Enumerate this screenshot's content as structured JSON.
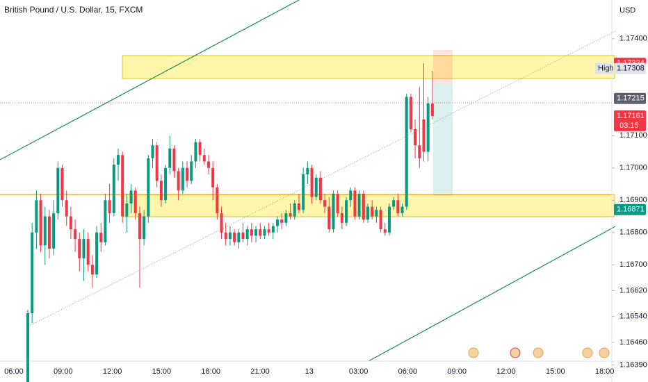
{
  "chart_data": {
    "type": "candlestick",
    "title": "British Pound / U.S. Dollar, 15, FXCM",
    "currency": "USD",
    "up_color": "#089981",
    "down_color": "#f23645",
    "ylim": [
      1.1635,
      1.1752
    ],
    "yticks": [
      {
        "value": 1.174,
        "label": "1.17400"
      },
      {
        "value": 1.171,
        "label": "1.17100"
      },
      {
        "value": 1.17,
        "label": "1.17000"
      },
      {
        "value": 1.169,
        "label": "1.16900"
      },
      {
        "value": 1.168,
        "label": "1.16800"
      },
      {
        "value": 1.167,
        "label": "1.16700"
      },
      {
        "value": 1.1662,
        "label": "1.16620"
      },
      {
        "value": 1.1654,
        "label": "1.16540"
      },
      {
        "value": 1.1646,
        "label": "1.16460"
      },
      {
        "value": 1.1639,
        "label": "1.16390"
      }
    ],
    "xticks": [
      "06:00",
      "09:00",
      "12:00",
      "15:00",
      "18:00",
      "21:00",
      "13",
      "03:00",
      "06:00",
      "09:00",
      "12:00",
      "15:00",
      "18:00"
    ],
    "price_tags": [
      {
        "value": 1.17324,
        "label": "1.17324",
        "color": "#f23645"
      },
      {
        "value": 1.17308,
        "label": "1.17308",
        "color": "#e0e3eb",
        "marker": "High"
      },
      {
        "value": 1.17215,
        "label": "1.17215",
        "color": "#5d606b"
      },
      {
        "value": 1.17161,
        "label": "1.17161",
        "color": "#f23645",
        "countdown": "03:15"
      },
      {
        "value": 1.16871,
        "label": "1.16871",
        "color": "#089981"
      }
    ],
    "candles": [
      [
        1.1633,
        1.1656,
        1.163,
        1.1655
      ],
      [
        1.1655,
        1.1683,
        1.1652,
        1.168
      ],
      [
        1.168,
        1.1693,
        1.1675,
        1.169
      ],
      [
        1.169,
        1.1692,
        1.1674,
        1.1676
      ],
      [
        1.1676,
        1.1688,
        1.167,
        1.1685
      ],
      [
        1.1685,
        1.1687,
        1.1672,
        1.1675
      ],
      [
        1.1675,
        1.169,
        1.1673,
        1.1686
      ],
      [
        1.1686,
        1.1702,
        1.1684,
        1.17
      ],
      [
        1.17,
        1.1701,
        1.1688,
        1.169
      ],
      [
        1.169,
        1.1693,
        1.1682,
        1.1685
      ],
      [
        1.1685,
        1.1688,
        1.1678,
        1.1681
      ],
      [
        1.1681,
        1.1684,
        1.1674,
        1.1678
      ],
      [
        1.1678,
        1.168,
        1.1668,
        1.1672
      ],
      [
        1.1672,
        1.1681,
        1.1665,
        1.1678
      ],
      [
        1.1678,
        1.168,
        1.1668,
        1.167
      ],
      [
        1.167,
        1.1673,
        1.1663,
        1.1667
      ],
      [
        1.1667,
        1.1682,
        1.1666,
        1.168
      ],
      [
        1.168,
        1.1683,
        1.1674,
        1.1677
      ],
      [
        1.1677,
        1.1692,
        1.1676,
        1.169
      ],
      [
        1.169,
        1.1695,
        1.1683,
        1.1686
      ],
      [
        1.1686,
        1.1703,
        1.1685,
        1.1701
      ],
      [
        1.1701,
        1.1706,
        1.1696,
        1.1704
      ],
      [
        1.1704,
        1.1705,
        1.1683,
        1.1685
      ],
      [
        1.1685,
        1.1692,
        1.168,
        1.1689
      ],
      [
        1.1689,
        1.1695,
        1.1686,
        1.1693
      ],
      [
        1.1693,
        1.1694,
        1.1684,
        1.1686
      ],
      [
        1.1686,
        1.1688,
        1.1663,
        1.1678
      ],
      [
        1.1678,
        1.1687,
        1.1676,
        1.1685
      ],
      [
        1.1685,
        1.1704,
        1.1683,
        1.1703
      ],
      [
        1.1703,
        1.1709,
        1.17,
        1.1707
      ],
      [
        1.1707,
        1.1708,
        1.1694,
        1.1696
      ],
      [
        1.1696,
        1.1698,
        1.1688,
        1.169
      ],
      [
        1.169,
        1.1701,
        1.1689,
        1.17
      ],
      [
        1.17,
        1.171,
        1.1698,
        1.1706
      ],
      [
        1.1706,
        1.1707,
        1.1697,
        1.1699
      ],
      [
        1.1699,
        1.17,
        1.169,
        1.1693
      ],
      [
        1.1693,
        1.1702,
        1.1692,
        1.17
      ],
      [
        1.17,
        1.1702,
        1.1694,
        1.1696
      ],
      [
        1.1696,
        1.1704,
        1.1695,
        1.1702
      ],
      [
        1.1702,
        1.1709,
        1.17,
        1.1708
      ],
      [
        1.1708,
        1.1709,
        1.1702,
        1.1704
      ],
      [
        1.1704,
        1.1706,
        1.1701,
        1.1702
      ],
      [
        1.1702,
        1.1704,
        1.1698,
        1.17
      ],
      [
        1.17,
        1.1702,
        1.169,
        1.1694
      ],
      [
        1.1694,
        1.1695,
        1.1684,
        1.1686
      ],
      [
        1.1686,
        1.1688,
        1.1678,
        1.168
      ],
      [
        1.168,
        1.1683,
        1.1676,
        1.1678
      ],
      [
        1.1678,
        1.1682,
        1.1676,
        1.168
      ],
      [
        1.168,
        1.1681,
        1.1676,
        1.1677
      ],
      [
        1.1677,
        1.1681,
        1.1675,
        1.168
      ],
      [
        1.168,
        1.1683,
        1.1677,
        1.1678
      ],
      [
        1.1678,
        1.1682,
        1.1676,
        1.1681
      ],
      [
        1.1681,
        1.1683,
        1.1677,
        1.1679
      ],
      [
        1.1679,
        1.1682,
        1.1677,
        1.1681
      ],
      [
        1.1681,
        1.1683,
        1.1678,
        1.1679
      ],
      [
        1.1679,
        1.1682,
        1.1678,
        1.1681
      ],
      [
        1.1681,
        1.1683,
        1.1679,
        1.168
      ],
      [
        1.168,
        1.1683,
        1.1678,
        1.1682
      ],
      [
        1.1682,
        1.1685,
        1.168,
        1.1684
      ],
      [
        1.1684,
        1.1686,
        1.1681,
        1.1683
      ],
      [
        1.1683,
        1.1687,
        1.1682,
        1.1686
      ],
      [
        1.1686,
        1.1689,
        1.1684,
        1.1685
      ],
      [
        1.1685,
        1.169,
        1.1684,
        1.1689
      ],
      [
        1.1689,
        1.1692,
        1.1686,
        1.1687
      ],
      [
        1.1687,
        1.17,
        1.1686,
        1.1698
      ],
      [
        1.1698,
        1.1702,
        1.1695,
        1.17
      ],
      [
        1.17,
        1.1701,
        1.1689,
        1.1691
      ],
      [
        1.1691,
        1.1698,
        1.169,
        1.1697
      ],
      [
        1.1697,
        1.1699,
        1.1689,
        1.169
      ],
      [
        1.169,
        1.1692,
        1.1686,
        1.1688
      ],
      [
        1.1688,
        1.1691,
        1.168,
        1.1681
      ],
      [
        1.1681,
        1.1693,
        1.168,
        1.1692
      ],
      [
        1.1692,
        1.1693,
        1.1685,
        1.1686
      ],
      [
        1.1686,
        1.1688,
        1.1681,
        1.1683
      ],
      [
        1.1683,
        1.1691,
        1.1682,
        1.169
      ],
      [
        1.169,
        1.1694,
        1.1688,
        1.1693
      ],
      [
        1.1693,
        1.1694,
        1.1684,
        1.1685
      ],
      [
        1.1685,
        1.1693,
        1.1684,
        1.1692
      ],
      [
        1.1692,
        1.1693,
        1.1683,
        1.1684
      ],
      [
        1.1684,
        1.1689,
        1.1683,
        1.1688
      ],
      [
        1.1688,
        1.169,
        1.1684,
        1.1685
      ],
      [
        1.1685,
        1.1688,
        1.1683,
        1.1687
      ],
      [
        1.1687,
        1.1688,
        1.168,
        1.1681
      ],
      [
        1.1681,
        1.1683,
        1.1679,
        1.168
      ],
      [
        1.168,
        1.1689,
        1.1679,
        1.1688
      ],
      [
        1.1688,
        1.1691,
        1.1687,
        1.169
      ],
      [
        1.169,
        1.1692,
        1.1685,
        1.1686
      ],
      [
        1.1686,
        1.1689,
        1.1685,
        1.1688
      ],
      [
        1.1688,
        1.1723,
        1.1687,
        1.1722
      ],
      [
        1.1722,
        1.1723,
        1.1711,
        1.1712
      ],
      [
        1.1712,
        1.1715,
        1.1703,
        1.1707
      ],
      [
        1.1707,
        1.1725,
        1.17,
        1.1703
      ],
      [
        1.1715,
        1.17324,
        1.1702,
        1.1705
      ],
      [
        1.1705,
        1.1722,
        1.1702,
        1.172
      ],
      [
        1.172,
        1.173,
        1.1715,
        1.17161
      ]
    ]
  }
}
